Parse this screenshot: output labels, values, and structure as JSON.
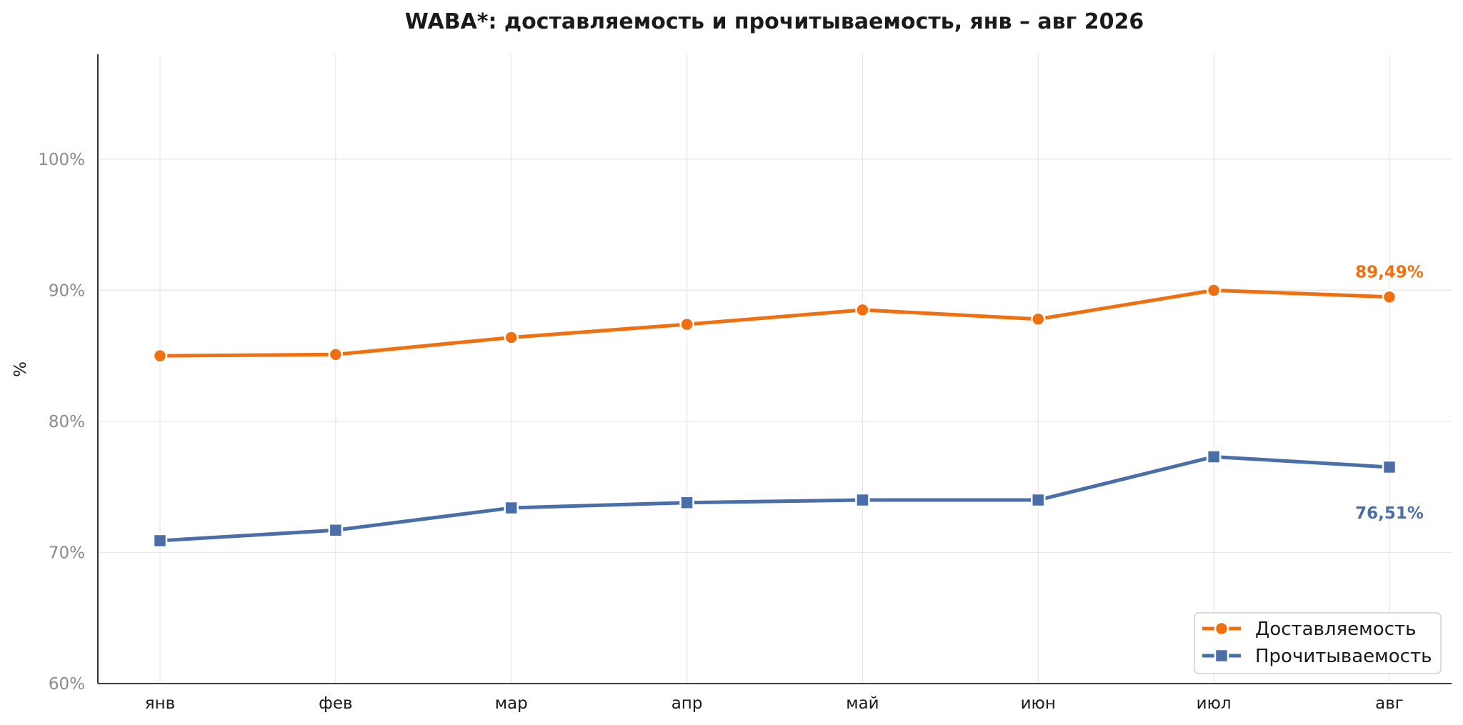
{
  "chart_data": {
    "type": "line",
    "title": "WABA*: доставляемость и прочитываемость, янв – авг 2026",
    "xlabel": "",
    "ylabel": "%",
    "categories": [
      "янв",
      "фев",
      "мар",
      "апр",
      "май",
      "июн",
      "июл",
      "авг"
    ],
    "ylim": [
      60,
      108
    ],
    "yticks": [
      60,
      70,
      80,
      90,
      100
    ],
    "ytick_labels": [
      "60%",
      "70%",
      "80%",
      "90%",
      "100%"
    ],
    "grid": true,
    "legend_position": "bottom-right",
    "series": [
      {
        "name": "Доставляемость",
        "color": "#f07010",
        "marker": "circle",
        "values": [
          85.0,
          85.1,
          86.4,
          87.4,
          88.5,
          87.8,
          90.0,
          89.49
        ],
        "end_label": "89,49%"
      },
      {
        "name": "Прочитываемость",
        "color": "#4a6ea8",
        "marker": "square",
        "values": [
          70.9,
          71.7,
          73.4,
          73.8,
          74.0,
          74.0,
          77.3,
          76.51
        ],
        "end_label": "76,51%"
      }
    ]
  }
}
